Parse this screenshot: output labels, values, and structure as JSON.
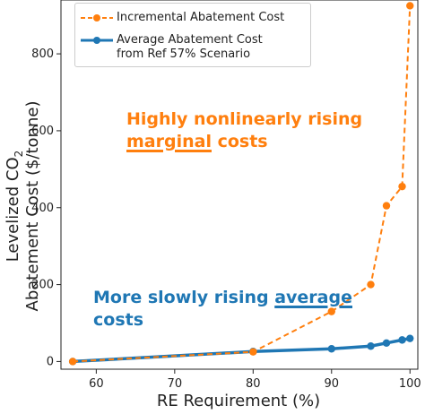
{
  "chart_data": {
    "type": "line",
    "xlabel": "RE Requirement (%)",
    "ylabel_line1": "Levelized CO",
    "ylabel_sub": "2",
    "ylabel_line2": "Abatement Cost ($/tonne)",
    "xlim": [
      55.5,
      101
    ],
    "ylim": [
      -20,
      940
    ],
    "x_ticks": [
      60,
      70,
      80,
      90,
      100
    ],
    "y_ticks": [
      0,
      200,
      400,
      600,
      800
    ],
    "legend_position": "top-left",
    "series": [
      {
        "name": "Incremental Abatement Cost",
        "color": "#ff7f0e",
        "style": "dashed",
        "x": [
          57,
          80,
          90,
          95,
          97,
          99,
          100
        ],
        "y": [
          0,
          25,
          130,
          200,
          405,
          455,
          925
        ]
      },
      {
        "name_line1": "Average Abatement Cost",
        "name_line2": "from Ref 57% Scenario",
        "color": "#1f77b4",
        "style": "solid",
        "x": [
          57,
          80,
          90,
          95,
          97,
          99,
          100
        ],
        "y": [
          0,
          26,
          33,
          40,
          48,
          56,
          60
        ]
      }
    ],
    "annotations": {
      "orange_line1": "Highly nonlinearly rising",
      "orange_line2_u": "marginal",
      "orange_line2_rest": " costs",
      "blue_line1_pre": "More slowly rising ",
      "blue_line1_u": "average",
      "blue_line2": "costs"
    }
  }
}
